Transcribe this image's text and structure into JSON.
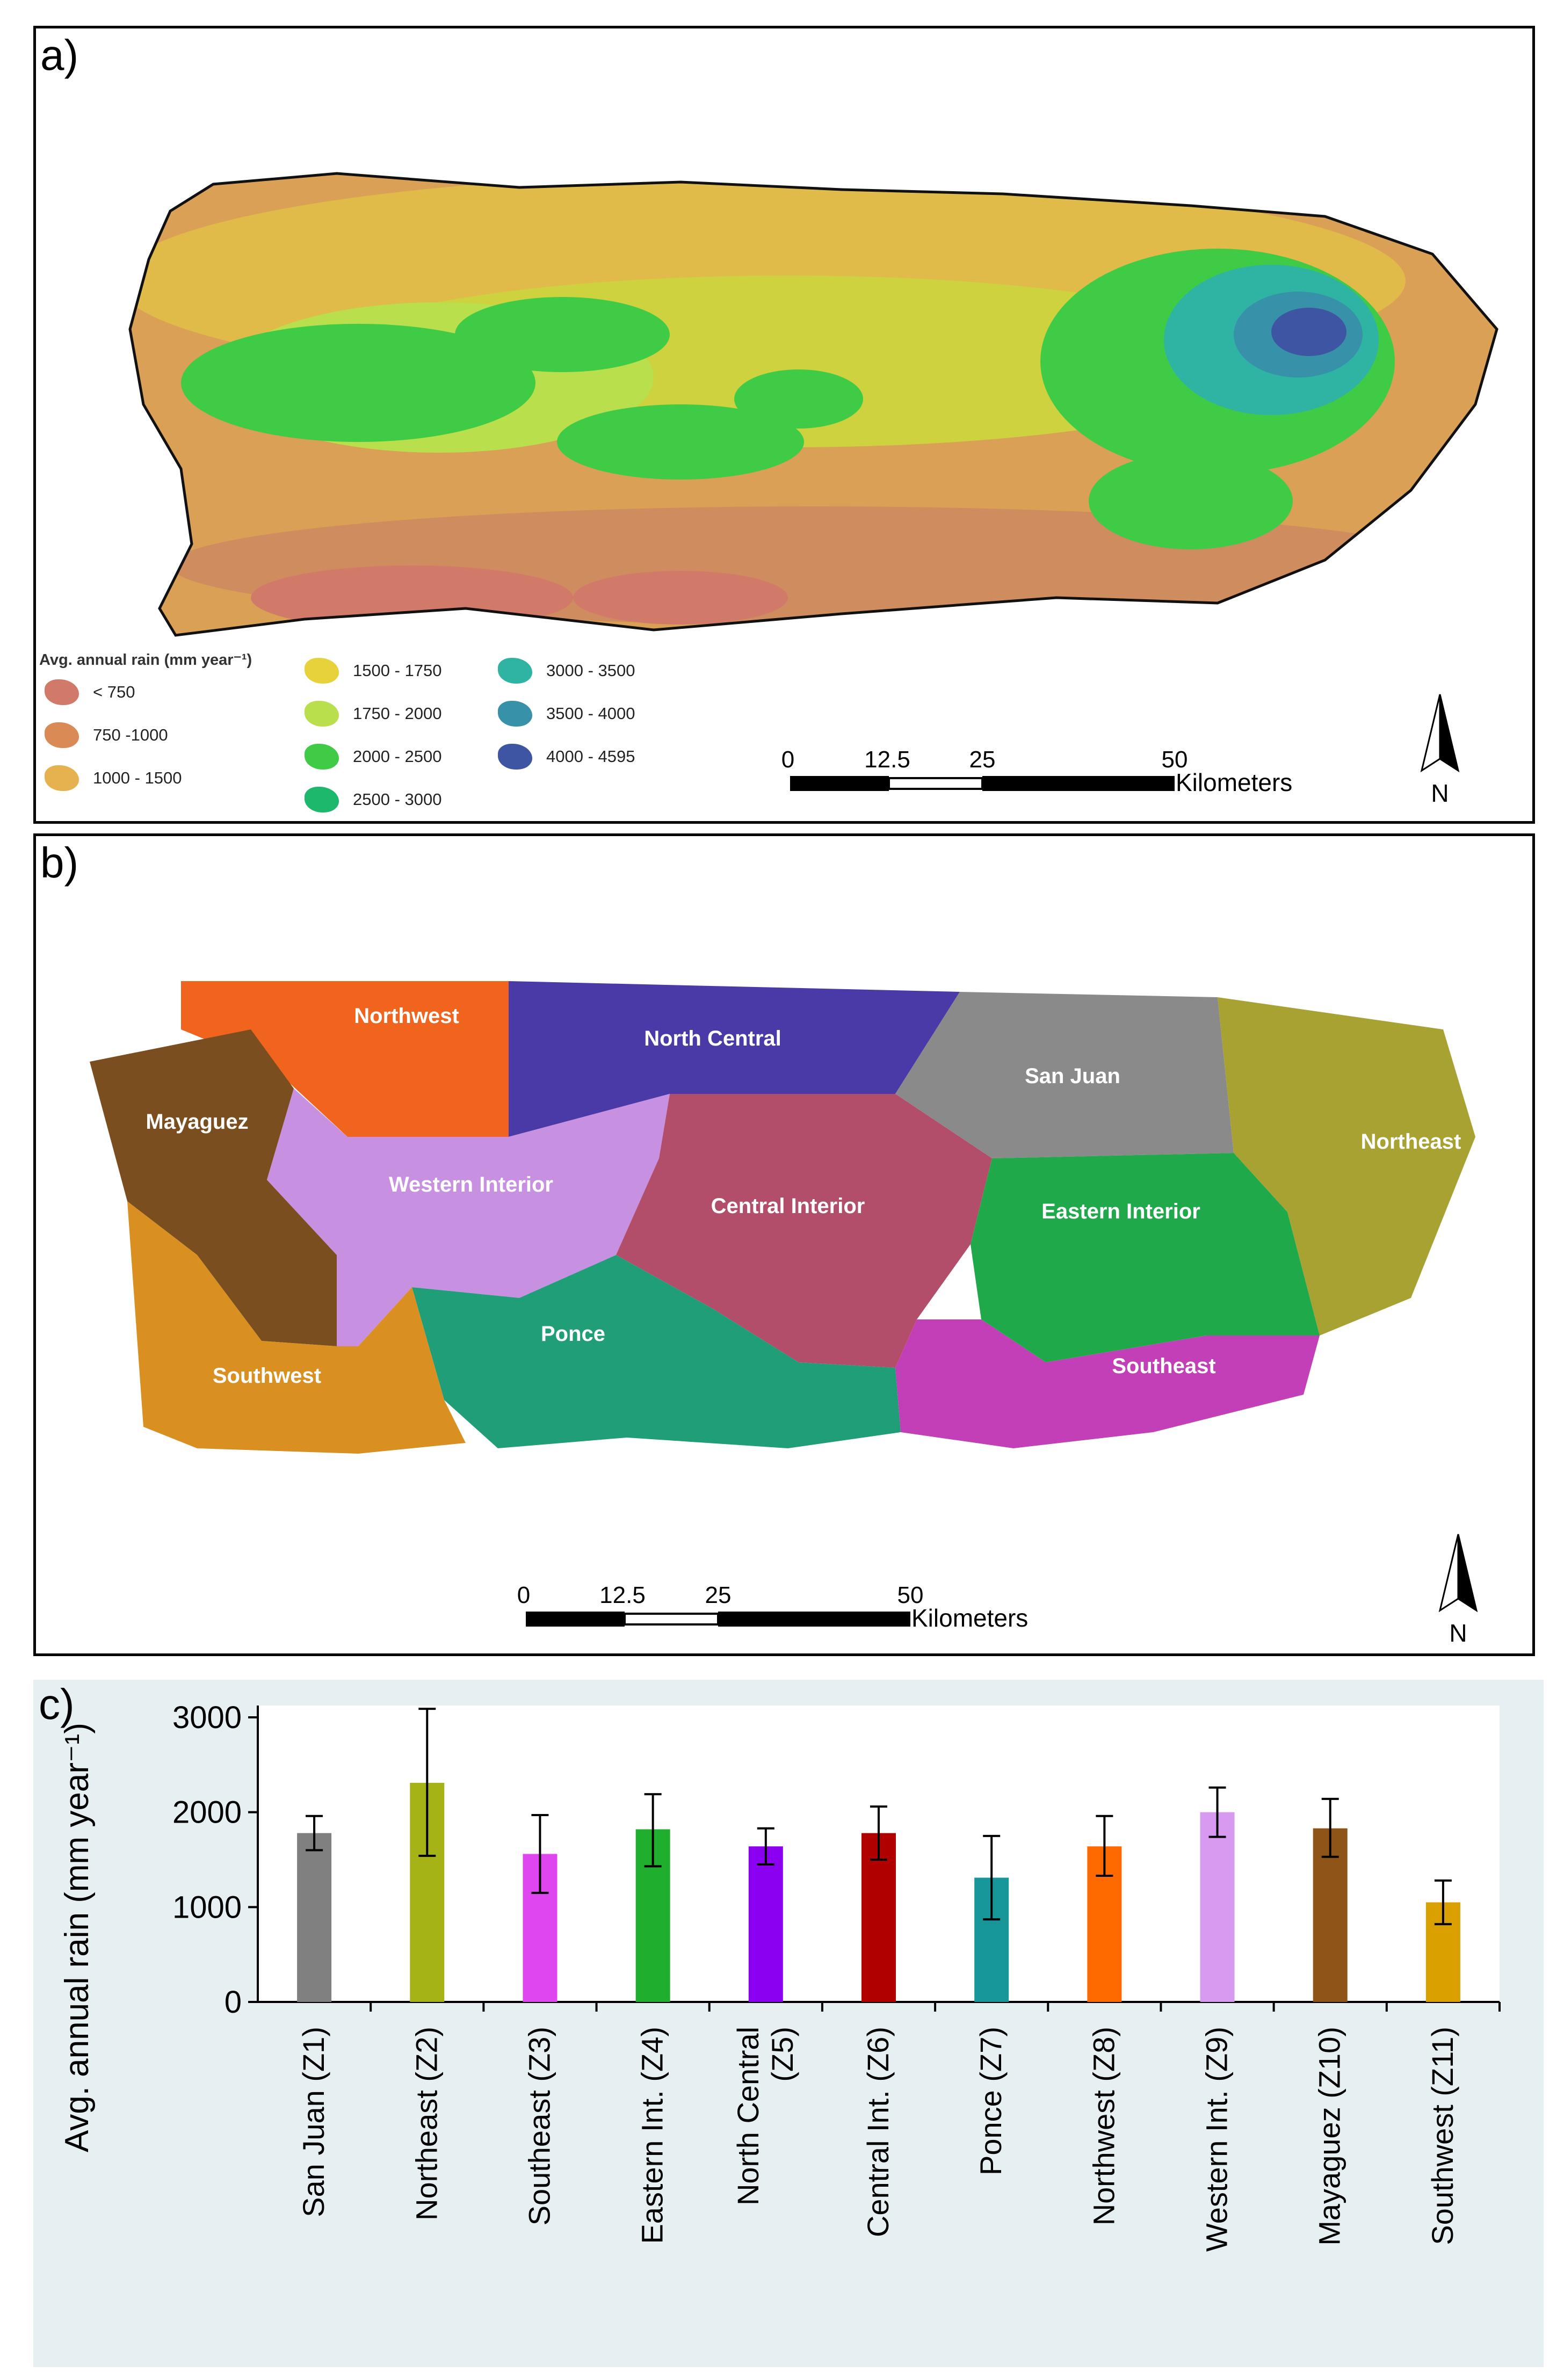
{
  "panel_a": {
    "label": "a)",
    "legend_title": "Avg. annual rain (mm year⁻¹)",
    "legend": [
      {
        "label": "< 750",
        "color": "#d27a6a"
      },
      {
        "label": "750 -1000",
        "color": "#d98a55"
      },
      {
        "label": "1000 - 1500",
        "color": "#e6b250"
      },
      {
        "label": "1500 - 1750",
        "color": "#e8d23c"
      },
      {
        "label": "1750 - 2000",
        "color": "#b9df4c"
      },
      {
        "label": "2000 - 2500",
        "color": "#3fcb46"
      },
      {
        "label": "2500 - 3000",
        "color": "#1db86c"
      },
      {
        "label": "3000 - 3500",
        "color": "#2fb4a4"
      },
      {
        "label": "3500 - 4000",
        "color": "#3791a8"
      },
      {
        "label": "4000 - 4595",
        "color": "#3d55a3"
      }
    ],
    "scale_ticks": [
      "0",
      "12.5",
      "25",
      "50"
    ],
    "scale_unit": "Kilometers",
    "north": "N"
  },
  "panel_b": {
    "label": "b)",
    "zones": [
      {
        "name": "Northwest",
        "color": "#f0641e"
      },
      {
        "name": "North Central",
        "color": "#4a3aa8"
      },
      {
        "name": "San Juan",
        "color": "#8a8a8a"
      },
      {
        "name": "Northeast",
        "color": "#a8a232"
      },
      {
        "name": "Mayaguez",
        "color": "#7a4e1e"
      },
      {
        "name": "Western Interior",
        "color": "#c890e0"
      },
      {
        "name": "Central Interior",
        "color": "#b24d6a"
      },
      {
        "name": "Eastern Interior",
        "color": "#1fa94a"
      },
      {
        "name": "Ponce",
        "color": "#1f9e78"
      },
      {
        "name": "Southeast",
        "color": "#c23fb8"
      },
      {
        "name": "Southwest",
        "color": "#d99020"
      }
    ],
    "scale_ticks": [
      "0",
      "12.5",
      "25",
      "50"
    ],
    "scale_unit": "Kilometers",
    "north": "N"
  },
  "panel_c": {
    "label": "c)"
  },
  "chart_data": {
    "type": "bar",
    "title": "",
    "xlabel": "",
    "ylabel": "Avg. annual rain (mm year⁻¹)",
    "ylim": [
      0,
      3000
    ],
    "yticks": [
      0,
      1000,
      2000,
      3000
    ],
    "ytick_labels": [
      "0",
      "1000",
      "2000",
      "3000"
    ],
    "categories": [
      "San Juan (Z1)",
      "Northeast (Z2)",
      "Southeast (Z3)",
      "Eastern Int. (Z4)",
      "North Central (Z5)",
      "Central Int. (Z6)",
      "Ponce (Z7)",
      "Northwest (Z8)",
      "Western Int. (Z9)",
      "Mayaguez (Z10)",
      "Southwest (Z11)"
    ],
    "category_lines": [
      [
        "San Juan (Z1)"
      ],
      [
        "Northeast (Z2)"
      ],
      [
        "Southeast (Z3)"
      ],
      [
        "Eastern Int. (Z4)"
      ],
      [
        "North Central",
        "(Z5)"
      ],
      [
        "Central Int. (Z6)"
      ],
      [
        "Ponce (Z7)"
      ],
      [
        "Northwest (Z8)"
      ],
      [
        "Western Int. (Z9)"
      ],
      [
        "Mayaguez (Z10)"
      ],
      [
        "Southwest (Z11)"
      ]
    ],
    "values": [
      1780,
      2310,
      1560,
      1820,
      1640,
      1780,
      1310,
      1640,
      2000,
      1830,
      1050
    ],
    "error_low": [
      1600,
      1540,
      1150,
      1430,
      1450,
      1500,
      870,
      1330,
      1740,
      1530,
      820
    ],
    "error_high": [
      1960,
      3090,
      1970,
      2190,
      1830,
      2060,
      1750,
      1960,
      2260,
      2140,
      1280
    ],
    "colors": [
      "#808080",
      "#a6b316",
      "#e046f0",
      "#1fae2e",
      "#8b00f0",
      "#b00000",
      "#17979a",
      "#ff6a00",
      "#d89af0",
      "#8e5418",
      "#d9a000"
    ]
  }
}
